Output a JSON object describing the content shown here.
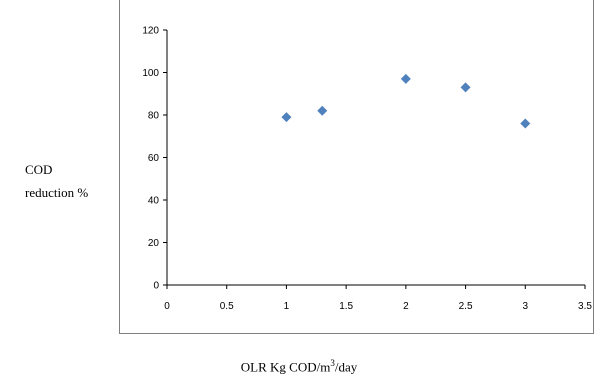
{
  "chart_data": {
    "type": "scatter",
    "title": "",
    "xlabel_prefix": "OLR Kg COD/m",
    "xlabel_sup": "3",
    "xlabel_suffix": "/day",
    "ylabel_line1": "COD",
    "ylabel_line2": "reduction %",
    "x": [
      1.0,
      1.3,
      2.0,
      2.5,
      3.0
    ],
    "y": [
      79,
      82,
      97,
      93,
      76
    ],
    "xlim": [
      0,
      3.5
    ],
    "ylim": [
      0,
      120
    ],
    "xticks": [
      "0",
      "0.5",
      "1",
      "1.5",
      "2",
      "2.5",
      "3",
      "3.5"
    ],
    "yticks": [
      "0",
      "20",
      "40",
      "60",
      "80",
      "100",
      "120"
    ],
    "marker": "diamond",
    "marker_color": "#4f81bd",
    "grid": false,
    "legend": "none"
  }
}
